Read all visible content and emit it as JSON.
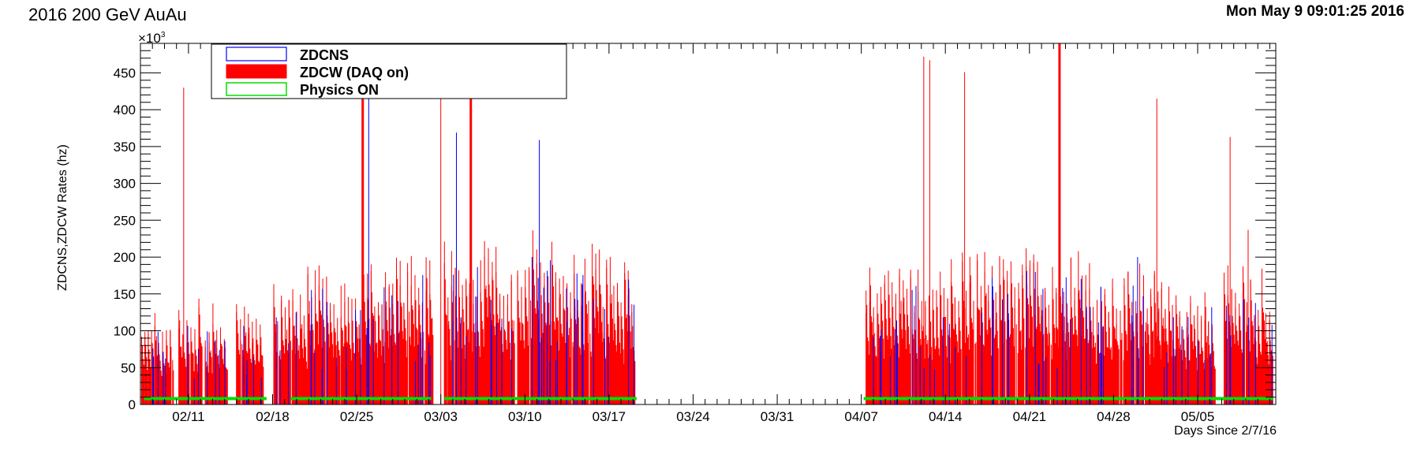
{
  "header": {
    "title": "2016 200 GeV AuAu",
    "timestamp": "Mon May  9 09:01:25 2016"
  },
  "chart_data": {
    "type": "bar",
    "ylabel": "ZDCNS,ZDCW Rates (hz)",
    "xlabel": "Days Since 2/7/16",
    "y_multiplier": "×10",
    "y_multiplier_exp": "3",
    "ylim": [
      0,
      490
    ],
    "xlim": [
      0,
      94.5
    ],
    "y_ticks": [
      0,
      50,
      100,
      150,
      200,
      250,
      300,
      350,
      400,
      450
    ],
    "x_ticks": [
      {
        "day": 4,
        "label": "02/11"
      },
      {
        "day": 11,
        "label": "02/18"
      },
      {
        "day": 18,
        "label": "02/25"
      },
      {
        "day": 25,
        "label": "03/03"
      },
      {
        "day": 32,
        "label": "03/10"
      },
      {
        "day": 39,
        "label": "03/17"
      },
      {
        "day": 46,
        "label": "03/24"
      },
      {
        "day": 53,
        "label": "03/31"
      },
      {
        "day": 60,
        "label": "04/07"
      },
      {
        "day": 67,
        "label": "04/14"
      },
      {
        "day": 74,
        "label": "04/21"
      },
      {
        "day": 81,
        "label": "04/28"
      },
      {
        "day": 88,
        "label": "05/05"
      }
    ],
    "legend": {
      "placement": "top-left",
      "entries": [
        {
          "name": "ZDCNS",
          "color": "#0000ff"
        },
        {
          "name": "ZDCW (DAQ on)",
          "color": "#ff0000"
        },
        {
          "name": "Physics ON",
          "color": "#00dd00"
        }
      ]
    },
    "physics_level": 8,
    "physics_on_segments": [
      [
        0.3,
        10.5
      ],
      [
        12.5,
        24.2
      ],
      [
        25.3,
        41.3
      ],
      [
        60.2,
        94.3
      ]
    ],
    "zdcw_segments": [
      {
        "start": 0.1,
        "end": 1.2,
        "typical": 80
      },
      {
        "start": 1.2,
        "end": 2.8,
        "typical": 95
      },
      {
        "start": 3.2,
        "end": 5.2,
        "typical": 110
      },
      {
        "start": 5.4,
        "end": 7.3,
        "typical": 105
      },
      {
        "start": 8.0,
        "end": 10.3,
        "typical": 105
      },
      {
        "start": 11.1,
        "end": 13.0,
        "typical": 125
      },
      {
        "start": 13.0,
        "end": 15.8,
        "typical": 145
      },
      {
        "start": 15.8,
        "end": 18.5,
        "typical": 130
      },
      {
        "start": 18.6,
        "end": 21.0,
        "typical": 150
      },
      {
        "start": 21.0,
        "end": 24.4,
        "typical": 165
      },
      {
        "start": 25.3,
        "end": 28.0,
        "typical": 175
      },
      {
        "start": 28.0,
        "end": 31.2,
        "typical": 175
      },
      {
        "start": 31.4,
        "end": 35.2,
        "typical": 185
      },
      {
        "start": 35.2,
        "end": 38.5,
        "typical": 170
      },
      {
        "start": 38.5,
        "end": 41.2,
        "typical": 155
      },
      {
        "start": 60.4,
        "end": 63.8,
        "typical": 150
      },
      {
        "start": 63.8,
        "end": 67.8,
        "typical": 150
      },
      {
        "start": 67.8,
        "end": 71.2,
        "typical": 160
      },
      {
        "start": 71.2,
        "end": 75.3,
        "typical": 170
      },
      {
        "start": 75.3,
        "end": 79.3,
        "typical": 160
      },
      {
        "start": 79.3,
        "end": 83.5,
        "typical": 150
      },
      {
        "start": 83.5,
        "end": 86.8,
        "typical": 140
      },
      {
        "start": 86.8,
        "end": 89.5,
        "typical": 120
      },
      {
        "start": 90.2,
        "end": 94.3,
        "typical": 145
      }
    ],
    "zdcw_spikes": [
      {
        "x": 3.6,
        "y": 430
      },
      {
        "x": 18.5,
        "y": 490
      },
      {
        "x": 25.0,
        "y": 430
      },
      {
        "x": 27.5,
        "y": 490
      },
      {
        "x": 65.2,
        "y": 472
      },
      {
        "x": 65.7,
        "y": 467
      },
      {
        "x": 68.6,
        "y": 451
      },
      {
        "x": 76.5,
        "y": 490
      },
      {
        "x": 84.6,
        "y": 415
      },
      {
        "x": 90.7,
        "y": 363
      },
      {
        "x": 92.2,
        "y": 237
      }
    ],
    "zdcns_spikes": [
      {
        "x": 19.0,
        "y": 430
      },
      {
        "x": 26.3,
        "y": 369
      },
      {
        "x": 33.2,
        "y": 359
      },
      {
        "x": 32.6,
        "y": 200
      },
      {
        "x": 72.2,
        "y": 150
      },
      {
        "x": 83.0,
        "y": 200
      }
    ]
  }
}
